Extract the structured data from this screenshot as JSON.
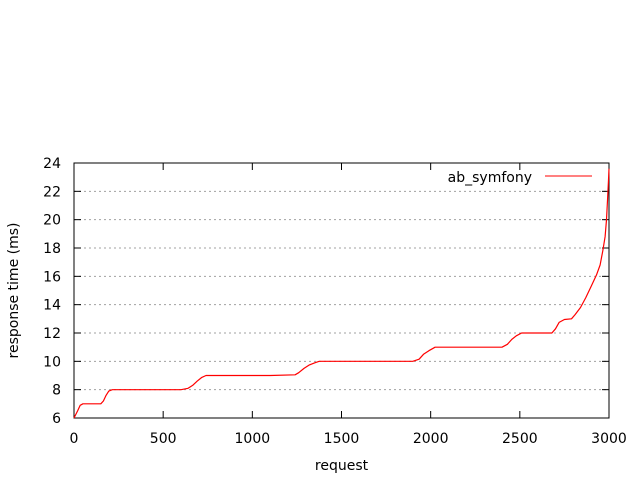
{
  "chart_data": {
    "type": "line",
    "title": "",
    "xlabel": "request",
    "ylabel": "response time (ms)",
    "xlim": [
      0,
      3000
    ],
    "ylim": [
      6,
      24
    ],
    "xticks": [
      0,
      500,
      1000,
      1500,
      2000,
      2500,
      3000
    ],
    "yticks": [
      6,
      8,
      10,
      12,
      14,
      16,
      18,
      20,
      22,
      24
    ],
    "grid": "horizontal-dotted",
    "legend_position": "top-right",
    "series": [
      {
        "name": "ab_symfony",
        "color": "#ff0000",
        "points": [
          [
            0,
            6
          ],
          [
            20,
            6.5
          ],
          [
            35,
            6.9
          ],
          [
            50,
            7
          ],
          [
            100,
            7
          ],
          [
            150,
            7
          ],
          [
            165,
            7.2
          ],
          [
            180,
            7.6
          ],
          [
            195,
            7.9
          ],
          [
            215,
            8
          ],
          [
            400,
            8
          ],
          [
            600,
            8
          ],
          [
            640,
            8.1
          ],
          [
            665,
            8.3
          ],
          [
            690,
            8.6
          ],
          [
            715,
            8.85
          ],
          [
            740,
            9
          ],
          [
            900,
            9
          ],
          [
            1100,
            9
          ],
          [
            1240,
            9.05
          ],
          [
            1260,
            9.2
          ],
          [
            1290,
            9.5
          ],
          [
            1320,
            9.75
          ],
          [
            1350,
            9.9
          ],
          [
            1375,
            10
          ],
          [
            1600,
            10
          ],
          [
            1900,
            10
          ],
          [
            1935,
            10.15
          ],
          [
            1960,
            10.5
          ],
          [
            1990,
            10.75
          ],
          [
            2025,
            11
          ],
          [
            2200,
            11
          ],
          [
            2400,
            11
          ],
          [
            2430,
            11.2
          ],
          [
            2455,
            11.55
          ],
          [
            2480,
            11.8
          ],
          [
            2510,
            12
          ],
          [
            2600,
            12
          ],
          [
            2680,
            12
          ],
          [
            2700,
            12.3
          ],
          [
            2720,
            12.75
          ],
          [
            2750,
            12.95
          ],
          [
            2790,
            13
          ],
          [
            2810,
            13.3
          ],
          [
            2840,
            13.8
          ],
          [
            2870,
            14.5
          ],
          [
            2900,
            15.3
          ],
          [
            2930,
            16.1
          ],
          [
            2950,
            16.8
          ],
          [
            2965,
            17.8
          ],
          [
            2978,
            18.8
          ],
          [
            2986,
            20
          ],
          [
            2992,
            21.5
          ],
          [
            2997,
            22.8
          ],
          [
            3000,
            23.6
          ]
        ]
      }
    ]
  }
}
